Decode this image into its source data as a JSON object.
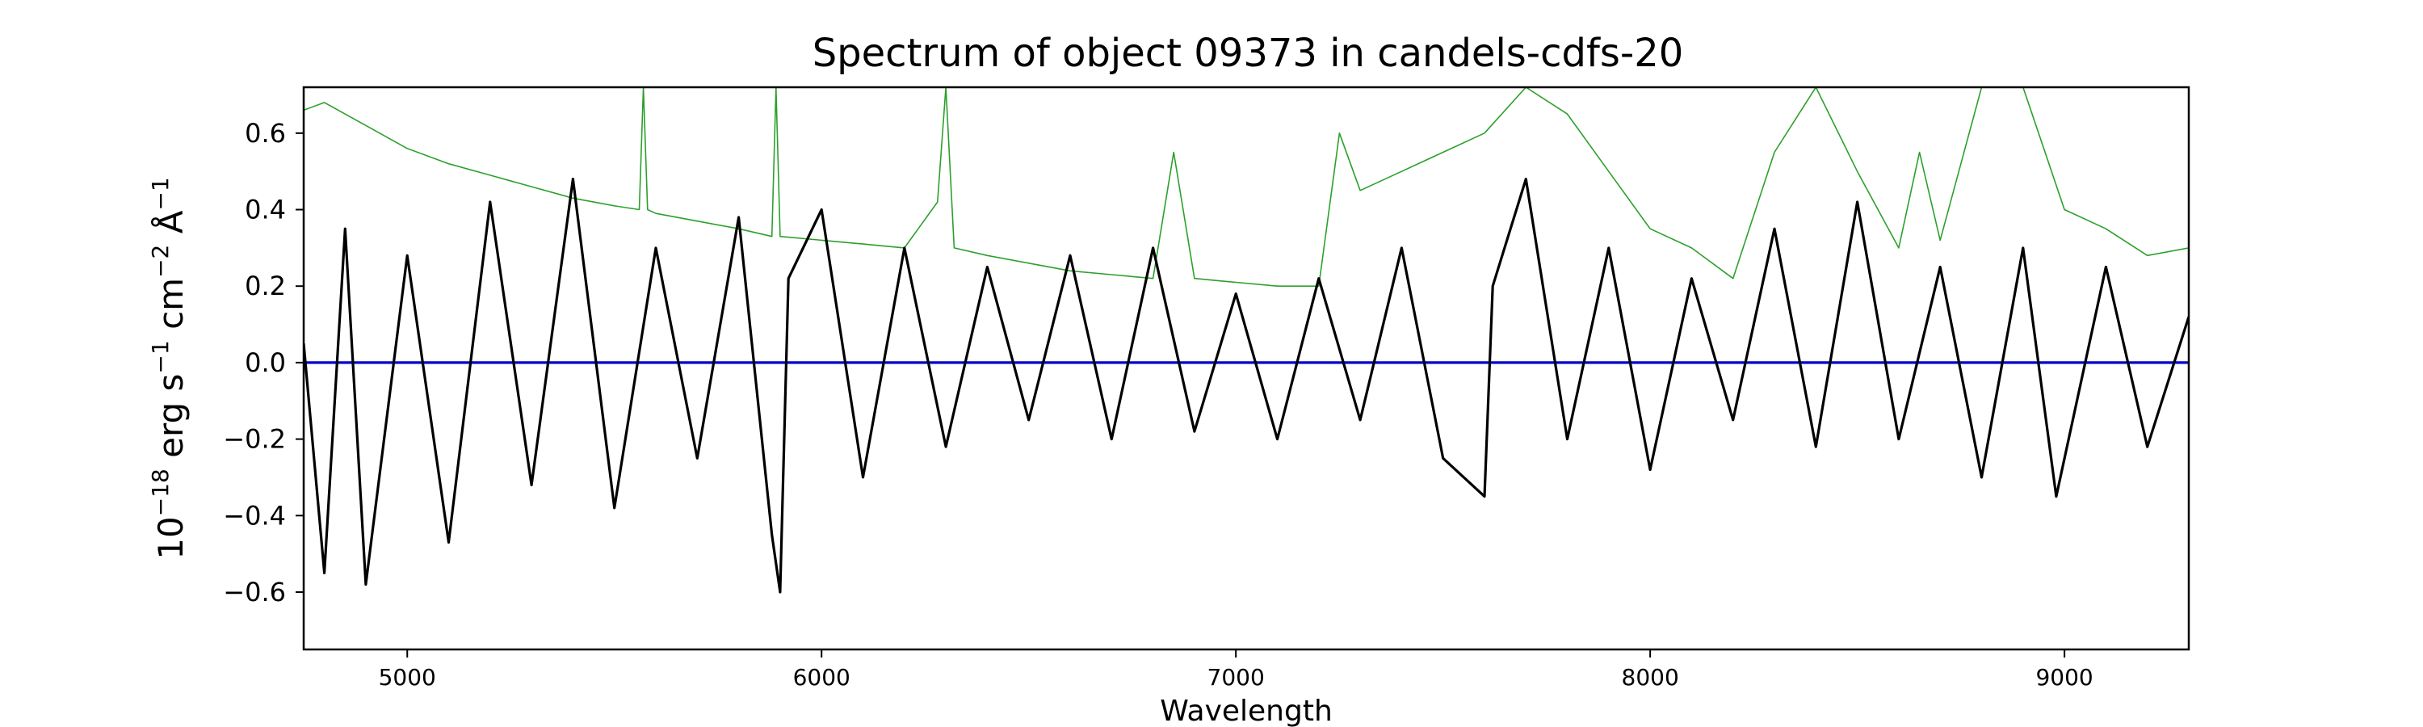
{
  "chart_data": {
    "type": "line",
    "title": "Spectrum of object 09373 in candels-cdfs-20",
    "xlabel": "Wavelength",
    "ylabel": {
      "base": "10",
      "base_exp": "−18",
      "u1": " erg s",
      "u1_exp": "−1",
      "u2": " cm",
      "u2_exp": "−2",
      "u3": " Å",
      "u3_exp": "−1"
    },
    "xlim": [
      4750,
      9300
    ],
    "ylim": [
      -0.75,
      0.72
    ],
    "xticks": [
      5000,
      6000,
      7000,
      8000,
      9000
    ],
    "yticks": [
      -0.6,
      -0.4,
      -0.2,
      0.0,
      0.2,
      0.4,
      0.6
    ],
    "ytick_labels": [
      "−0.6",
      "−0.4",
      "−0.2",
      "0.0",
      "0.2",
      "0.4",
      "0.6"
    ],
    "grid": false,
    "colors": {
      "flux": "#000000",
      "error": "#2ca02c",
      "model": "#0000cc"
    },
    "series": [
      {
        "x": [
          4750,
          4800,
          4850,
          4900,
          5000,
          5100,
          5200,
          5300,
          5400,
          5500,
          5600,
          5700,
          5800,
          5880,
          5900,
          5920,
          6000,
          6100,
          6200,
          6300,
          6400,
          6500,
          6600,
          6700,
          6800,
          6900,
          7000,
          7100,
          7200,
          7300,
          7400,
          7500,
          7600,
          7620,
          7700,
          7800,
          7900,
          8000,
          8100,
          8200,
          8300,
          8400,
          8500,
          8600,
          8700,
          8800,
          8900,
          8980,
          9100,
          9200,
          9300
        ],
        "values": [
          0.05,
          -0.55,
          0.35,
          -0.58,
          0.28,
          -0.47,
          0.42,
          -0.32,
          0.48,
          -0.38,
          0.3,
          -0.25,
          0.38,
          -0.45,
          -0.6,
          0.22,
          0.4,
          -0.3,
          0.3,
          -0.22,
          0.25,
          -0.15,
          0.28,
          -0.2,
          0.3,
          -0.18,
          0.18,
          -0.2,
          0.22,
          -0.15,
          0.3,
          -0.25,
          -0.35,
          0.2,
          0.48,
          -0.2,
          0.3,
          -0.28,
          0.22,
          -0.15,
          0.35,
          -0.22,
          0.42,
          -0.2,
          0.25,
          -0.3,
          0.3,
          -0.35,
          0.25,
          -0.22,
          0.12
        ]
      },
      {
        "x": [
          4750,
          4800,
          4900,
          5000,
          5100,
          5200,
          5300,
          5400,
          5500,
          5560,
          5570,
          5580,
          5600,
          5700,
          5800,
          5880,
          5890,
          5900,
          6000,
          6100,
          6200,
          6280,
          6300,
          6320,
          6400,
          6500,
          6600,
          6700,
          6800,
          6850,
          6900,
          7000,
          7100,
          7200,
          7250,
          7300,
          7400,
          7500,
          7600,
          7700,
          7800,
          7900,
          8000,
          8100,
          8200,
          8300,
          8400,
          8500,
          8600,
          8650,
          8700,
          8800,
          8900,
          9000,
          9100,
          9200,
          9300
        ],
        "values": [
          0.66,
          0.68,
          0.62,
          0.56,
          0.52,
          0.49,
          0.46,
          0.43,
          0.41,
          0.4,
          0.72,
          0.4,
          0.39,
          0.37,
          0.35,
          0.33,
          0.72,
          0.33,
          0.32,
          0.31,
          0.3,
          0.42,
          0.72,
          0.3,
          0.28,
          0.26,
          0.24,
          0.23,
          0.22,
          0.55,
          0.22,
          0.21,
          0.2,
          0.2,
          0.6,
          0.45,
          0.5,
          0.55,
          0.6,
          0.72,
          0.65,
          0.5,
          0.35,
          0.3,
          0.22,
          0.55,
          0.72,
          0.5,
          0.3,
          0.55,
          0.32,
          0.72,
          0.72,
          0.4,
          0.35,
          0.28,
          0.3
        ]
      },
      {
        "x": [
          4750,
          9300
        ],
        "values": [
          0.0,
          0.0
        ]
      }
    ]
  }
}
